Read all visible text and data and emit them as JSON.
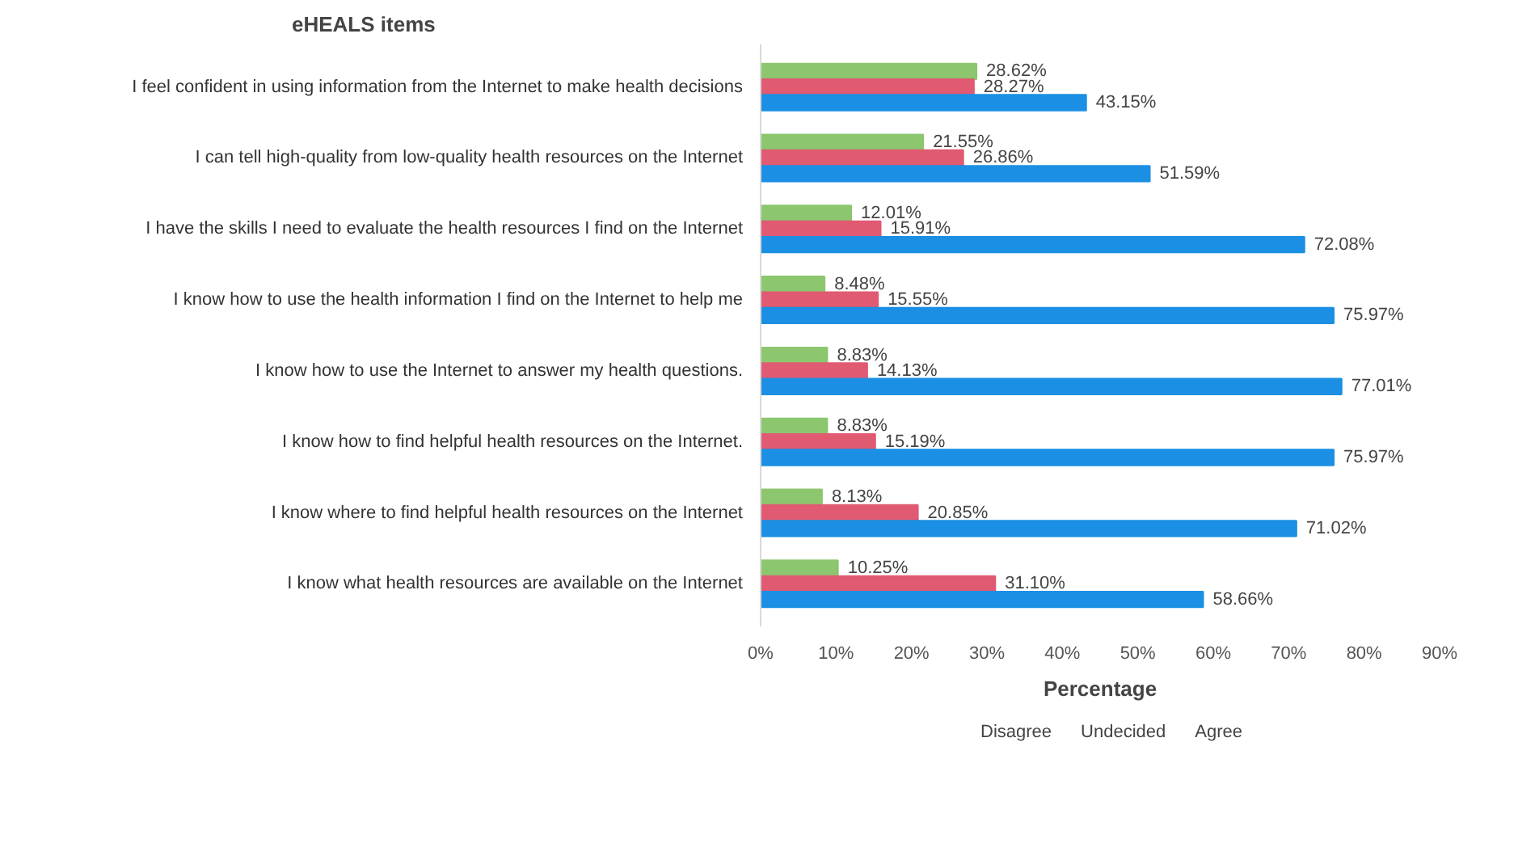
{
  "chart_data": {
    "type": "bar",
    "orientation": "horizontal",
    "ylabel": "eHEALS items",
    "xlabel": "Percentage",
    "categories": [
      "I feel confident in using information from the Internet to make health decisions",
      "I can tell high-quality from low-quality health resources on the Internet",
      "I have the skills I need to evaluate the health resources I find on the Internet",
      "I know how to use the health information I find on the Internet to help me",
      "I know how to use the Internet to answer my health questions.",
      "I know how to find helpful health resources on the Internet.",
      "I know where to find helpful health resources on the Internet",
      "I know what health resources are available on the Internet"
    ],
    "series": [
      {
        "name": "Disagree",
        "color": "#8cc66e",
        "values": [
          28.62,
          21.55,
          12.01,
          8.48,
          8.83,
          8.83,
          8.13,
          10.25
        ],
        "value_labels": [
          "28.62%",
          "21.55%",
          "12.01%",
          "8.48%",
          "8.83%",
          "8.83%",
          "8.13%",
          "10.25%"
        ]
      },
      {
        "name": "Undecided",
        "color": "#e05a72",
        "values": [
          28.27,
          26.86,
          15.91,
          15.55,
          14.13,
          15.19,
          20.85,
          31.1
        ],
        "value_labels": [
          "28.27%",
          "26.86%",
          "15.91%",
          "15.55%",
          "14.13%",
          "15.19%",
          "20.85%",
          "31.10%"
        ]
      },
      {
        "name": "Agree",
        "color": "#1b8fe3",
        "values": [
          43.15,
          51.59,
          72.08,
          75.97,
          77.01,
          75.97,
          71.02,
          58.66
        ],
        "value_labels": [
          "43.15%",
          "51.59%",
          "72.08%",
          "75.97%",
          "77.01%",
          "75.97%",
          "71.02%",
          "58.66%"
        ]
      }
    ],
    "xlim": [
      0,
      90
    ],
    "xticks": [
      {
        "value": 0,
        "label": "0%"
      },
      {
        "value": 10,
        "label": "10%"
      },
      {
        "value": 20,
        "label": "20%"
      },
      {
        "value": 30,
        "label": "30%"
      },
      {
        "value": 40,
        "label": "40%"
      },
      {
        "value": 50,
        "label": "50%"
      },
      {
        "value": 60,
        "label": "60%"
      },
      {
        "value": 70,
        "label": "70%"
      },
      {
        "value": 80,
        "label": "80%"
      },
      {
        "value": 90,
        "label": "90%"
      }
    ],
    "grid": false,
    "legend": "bottom"
  }
}
